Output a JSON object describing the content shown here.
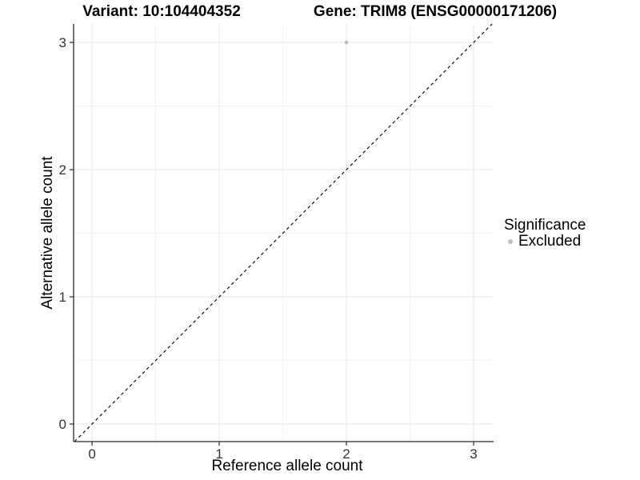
{
  "chart_data": {
    "type": "scatter",
    "titles": {
      "left": "Variant: 10:104404352",
      "right": "Gene: TRIM8 (ENSG00000171206)"
    },
    "xlabel": "Reference allele count",
    "ylabel": "Alternative allele count",
    "xlim": [
      -0.145,
      3.157
    ],
    "ylim": [
      -0.138,
      3.145
    ],
    "x_ticks": [
      0,
      1,
      2,
      3
    ],
    "y_ticks": [
      0,
      1,
      2,
      3
    ],
    "x_minor_ticks": [
      0.5,
      1.5,
      2.5
    ],
    "y_minor_ticks": [
      0.5,
      1.5,
      2.5
    ],
    "grid": "major and minor gridlines on, white panel background",
    "series": [
      {
        "name": "Excluded",
        "marker": "circle",
        "color": "#bdbdbd",
        "points": [
          {
            "x": 2,
            "y": 3
          }
        ]
      }
    ],
    "reference_line": {
      "kind": "identity y = x",
      "style": "dashed",
      "color": "#000000"
    },
    "legend": {
      "title": "Significance",
      "position": "right",
      "items": [
        {
          "label": "Excluded",
          "color": "#bdbdbd",
          "marker": "circle"
        }
      ]
    }
  },
  "colors": {
    "background": "#ffffff",
    "axis_line": "#2b2b2b",
    "tick_label": "#333333",
    "grid_major": "#e6e6e6",
    "grid_minor": "#f2f2f2",
    "marker": "#bdbdbd",
    "title_text": "#000000"
  }
}
